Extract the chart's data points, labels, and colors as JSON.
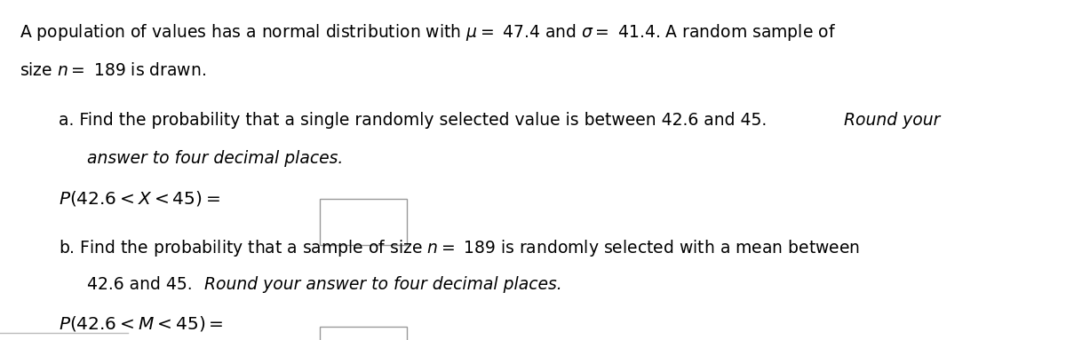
{
  "bg_color": "#ffffff",
  "text_color": "#000000",
  "box_color": "#aaaaaa",
  "font_size_main": 13.5,
  "font_size_formula": 14.5,
  "line1": "A population of values has a normal distribution with $\\mu =$ 47.4 and $\\sigma =$ 41.4. A random sample of",
  "line2": "size $n =$ 189 is drawn.",
  "a_line1_normal": "a. Find the probability that a single randomly selected value is between 42.6 and 45. ",
  "a_line1_italic": "Round your",
  "a_line2_italic": "answer to four decimal places.",
  "a_formula": "$P(42.6 < X < 45) =$",
  "b_line1": "b. Find the probability that a sample of size $n =$ 189 is randomly selected with a mean between",
  "b_line2_normal": "42.6 and 45. ",
  "b_line2_italic": "Round your answer to four decimal places.",
  "b_formula": "$P(42.6 < M < 45) =$"
}
